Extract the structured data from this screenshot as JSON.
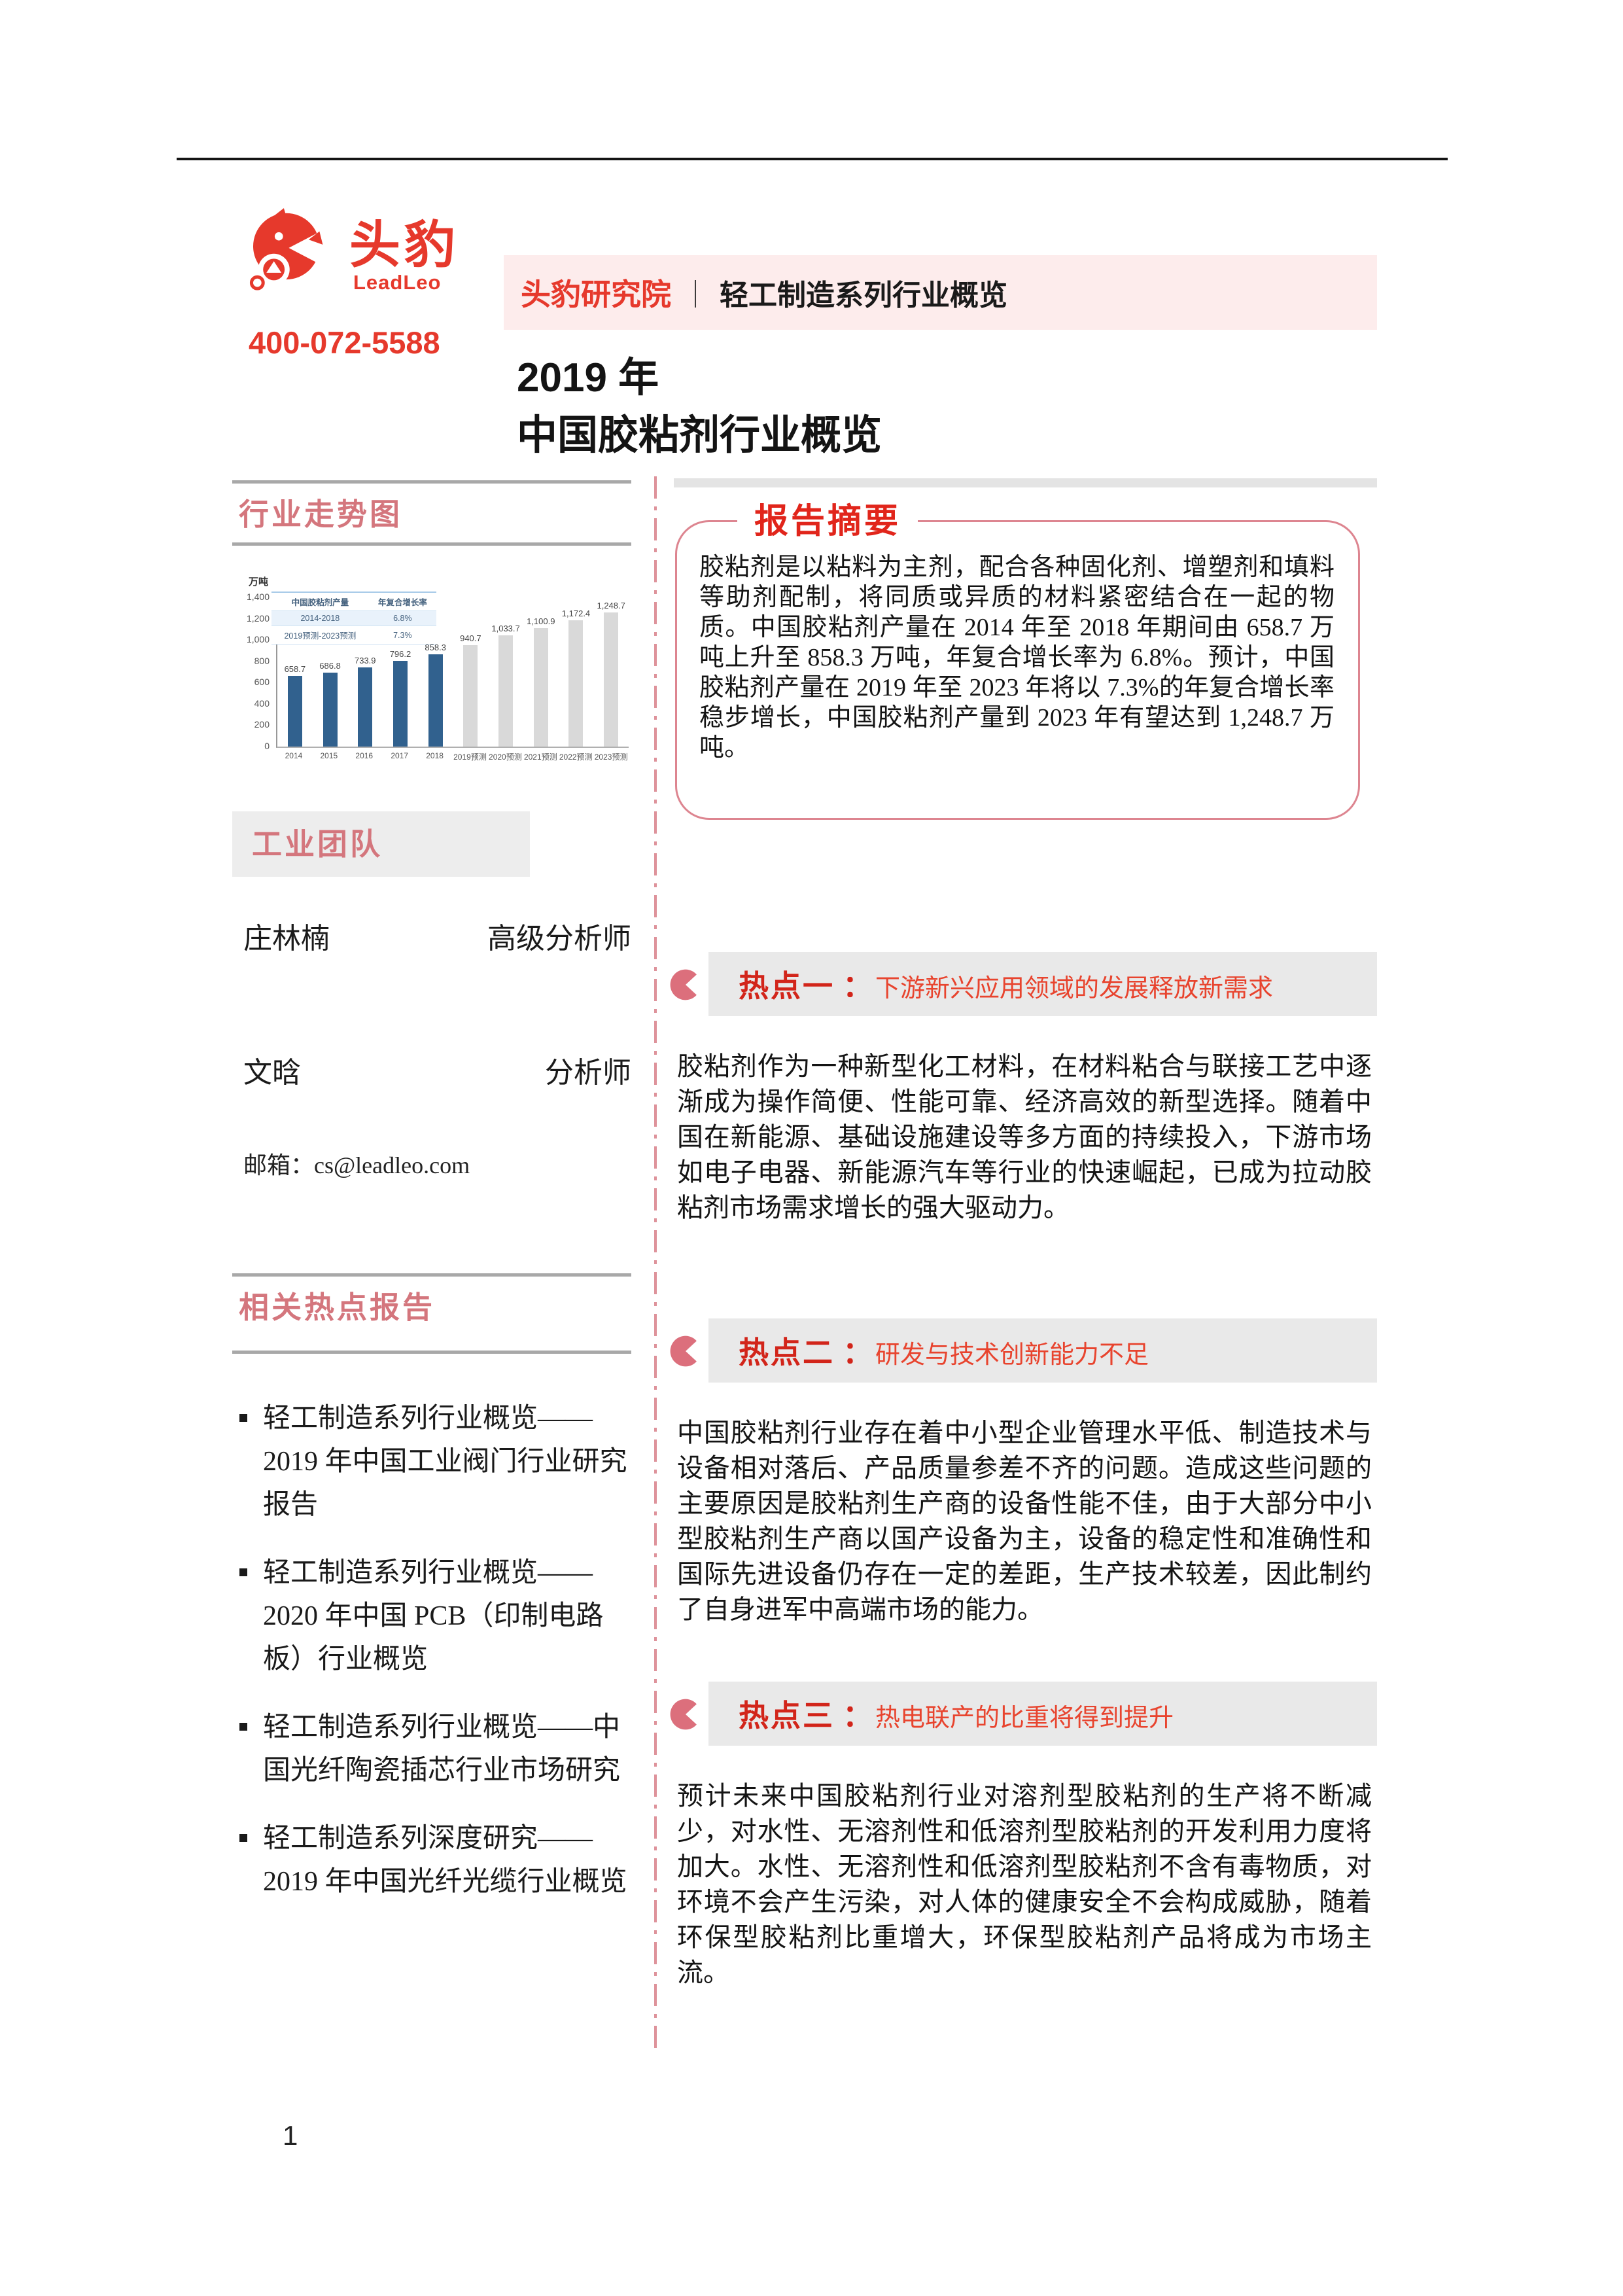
{
  "page": {
    "number": "1"
  },
  "header": {
    "phone": "400-072-5588",
    "brand": {
      "name": "头豹",
      "latin": "LeadLeo"
    },
    "banner": {
      "left": "头豹研究院",
      "separator": "｜",
      "right": "轻工制造系列行业概览"
    },
    "title_line1": "2019 年",
    "title_line2": "中国胶粘剂行业概览"
  },
  "sidebar": {
    "trend_section_title": "行业走势图",
    "team_section_title": "工业团队",
    "team": [
      {
        "name": "庄林楠",
        "role": "高级分析师"
      },
      {
        "name": "文晗",
        "role": "分析师"
      }
    ],
    "email_label": "邮箱：",
    "email": "cs@leadleo.com",
    "reports_section_title": "相关热点报告",
    "reports": [
      "轻工制造系列行业概览——2019 年中国工业阀门行业研究报告",
      "轻工制造系列行业概览——2020 年中国 PCB（印制电路板）行业概览",
      "轻工制造系列行业概览——中国光纤陶瓷插芯行业市场研究",
      "轻工制造系列深度研究——2019 年中国光纤光缆行业概览"
    ]
  },
  "summary": {
    "title": "报告摘要",
    "body": "胶粘剂是以粘料为主剂，配合各种固化剂、增塑剂和填料等助剂配制，将同质或异质的材料紧密结合在一起的物质。中国胶粘剂产量在 2014 年至 2018 年期间由 658.7 万吨上升至 858.3 万吨，年复合增长率为 6.8%。预计，中国胶粘剂产量在 2019 年至 2023 年将以 7.3%的年复合增长率稳步增长，中国胶粘剂产量到 2023 年有望达到 1,248.7 万吨。"
  },
  "hotspots": [
    {
      "label": "热点一",
      "colon": "：",
      "title": "下游新兴应用领域的发展释放新需求",
      "body": "胶粘剂作为一种新型化工材料，在材料粘合与联接工艺中逐渐成为操作简便、性能可靠、经济高效的新型选择。随着中国在新能源、基础设施建设等多方面的持续投入，下游市场如电子电器、新能源汽车等行业的快速崛起，已成为拉动胶粘剂市场需求增长的强大驱动力。"
    },
    {
      "label": "热点二",
      "colon": "：",
      "title": "研发与技术创新能力不足",
      "body": "中国胶粘剂行业存在着中小型企业管理水平低、制造技术与设备相对落后、产品质量参差不齐的问题。造成这些问题的主要原因是胶粘剂生产商的设备性能不佳，由于大部分中小型胶粘剂生产商以国产设备为主，设备的稳定性和准确性和国际先进设备仍存在一定的差距，生产技术较差，因此制约了自身进军中高端市场的能力。"
    },
    {
      "label": "热点三",
      "colon": "：",
      "title": "热电联产的比重将得到提升",
      "body": "预计未来中国胶粘剂行业对溶剂型胶粘剂的生产将不断减少，对水性、无溶剂性和低溶剂型胶粘剂的开发利用力度将加大。水性、无溶剂性和低溶剂型胶粘剂不含有毒物质，对环境不会产生污染，对人体的健康安全不会构成威胁，随着环保型胶粘剂比重增大，环保型胶粘剂产品将成为市场主流。"
    }
  ],
  "chart_data": {
    "type": "bar",
    "title": "中国胶粘剂产量及预测（行业走势图）",
    "unit_label": "万吨",
    "categories": [
      "2014",
      "2015",
      "2016",
      "2017",
      "2018",
      "2019预测",
      "2020预测",
      "2021预测",
      "2022预测",
      "2023预测"
    ],
    "values": [
      658.7,
      686.8,
      733.9,
      796.2,
      858.3,
      940.7,
      1033.7,
      1100.9,
      1172.4,
      1248.7
    ],
    "value_labels": [
      "658.7",
      "686.8",
      "733.9",
      "796.2",
      "858.3",
      "940.7",
      "1,033.7",
      "1,100.9",
      "1,172.4",
      "1,248.7"
    ],
    "ylim": [
      0,
      1400
    ],
    "yticks": [
      "1,400",
      "1,200",
      "1,000",
      "800",
      "600",
      "400",
      "200",
      "0"
    ],
    "actual_count": 5,
    "bar_color_actual": "#31618e",
    "bar_color_forecast": "#d9d9d9",
    "grid": false,
    "table": {
      "headers": [
        "中国胶粘剂产量",
        "年复合增长率"
      ],
      "rows": [
        [
          "2014-2018",
          "6.8%"
        ],
        [
          "2019预测-2023预测",
          "7.3%"
        ]
      ]
    }
  },
  "colors": {
    "accent_red": "#e1251b",
    "rose": "#d4767d",
    "banner_bg": "#fdecec",
    "hotspot_bar_bg": "#e9e9e9"
  }
}
